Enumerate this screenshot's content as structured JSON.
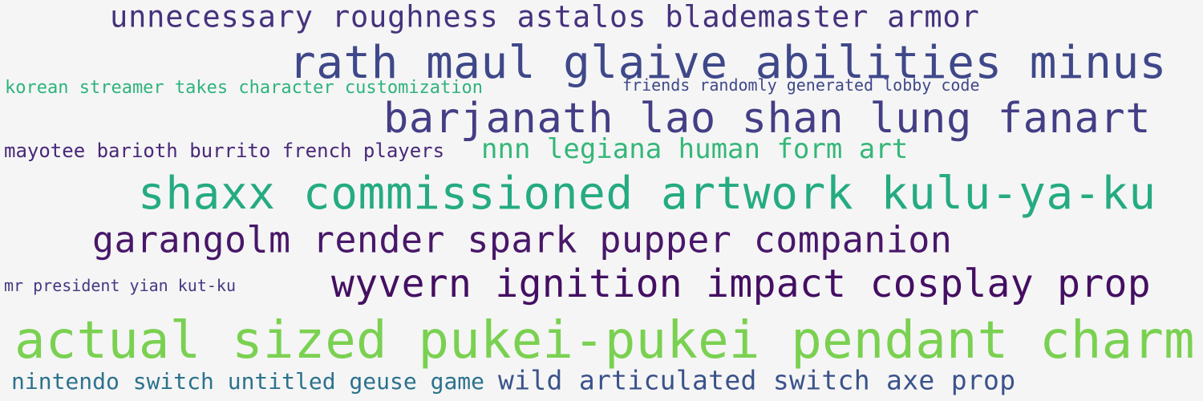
{
  "words": [
    {
      "text": "unnecessary roughness astalos blademaster armor",
      "color": "#46327e"
    },
    {
      "text": "rath maul glaive abilities minus",
      "color": "#3f4889"
    },
    {
      "text": "korean streamer takes character customization",
      "color": "#2eb37c"
    },
    {
      "text": "friends randomly generated lobby code",
      "color": "#3f4889"
    },
    {
      "text": "barjanath lao shan lung fanart",
      "color": "#433e85"
    },
    {
      "text": "mayotee barioth burrito french players",
      "color": "#482878"
    },
    {
      "text": "nnn legiana human form art",
      "color": "#35b779"
    },
    {
      "text": "shaxx commissioned artwork kulu-ya-ku",
      "color": "#25ab82"
    },
    {
      "text": "garangolm render spark pupper companion",
      "color": "#481769"
    },
    {
      "text": "mr president yian kut-ku",
      "color": "#443983"
    },
    {
      "text": "wyvern ignition impact cosplay prop",
      "color": "#440f62"
    },
    {
      "text": "actual sized pukei-pukei pendant charm",
      "color": "#7ad151"
    },
    {
      "text": "nintendo switch untitled geuse game",
      "color": "#2c728e"
    },
    {
      "text": "wild articulated switch axe prop",
      "color": "#3b528b"
    }
  ]
}
